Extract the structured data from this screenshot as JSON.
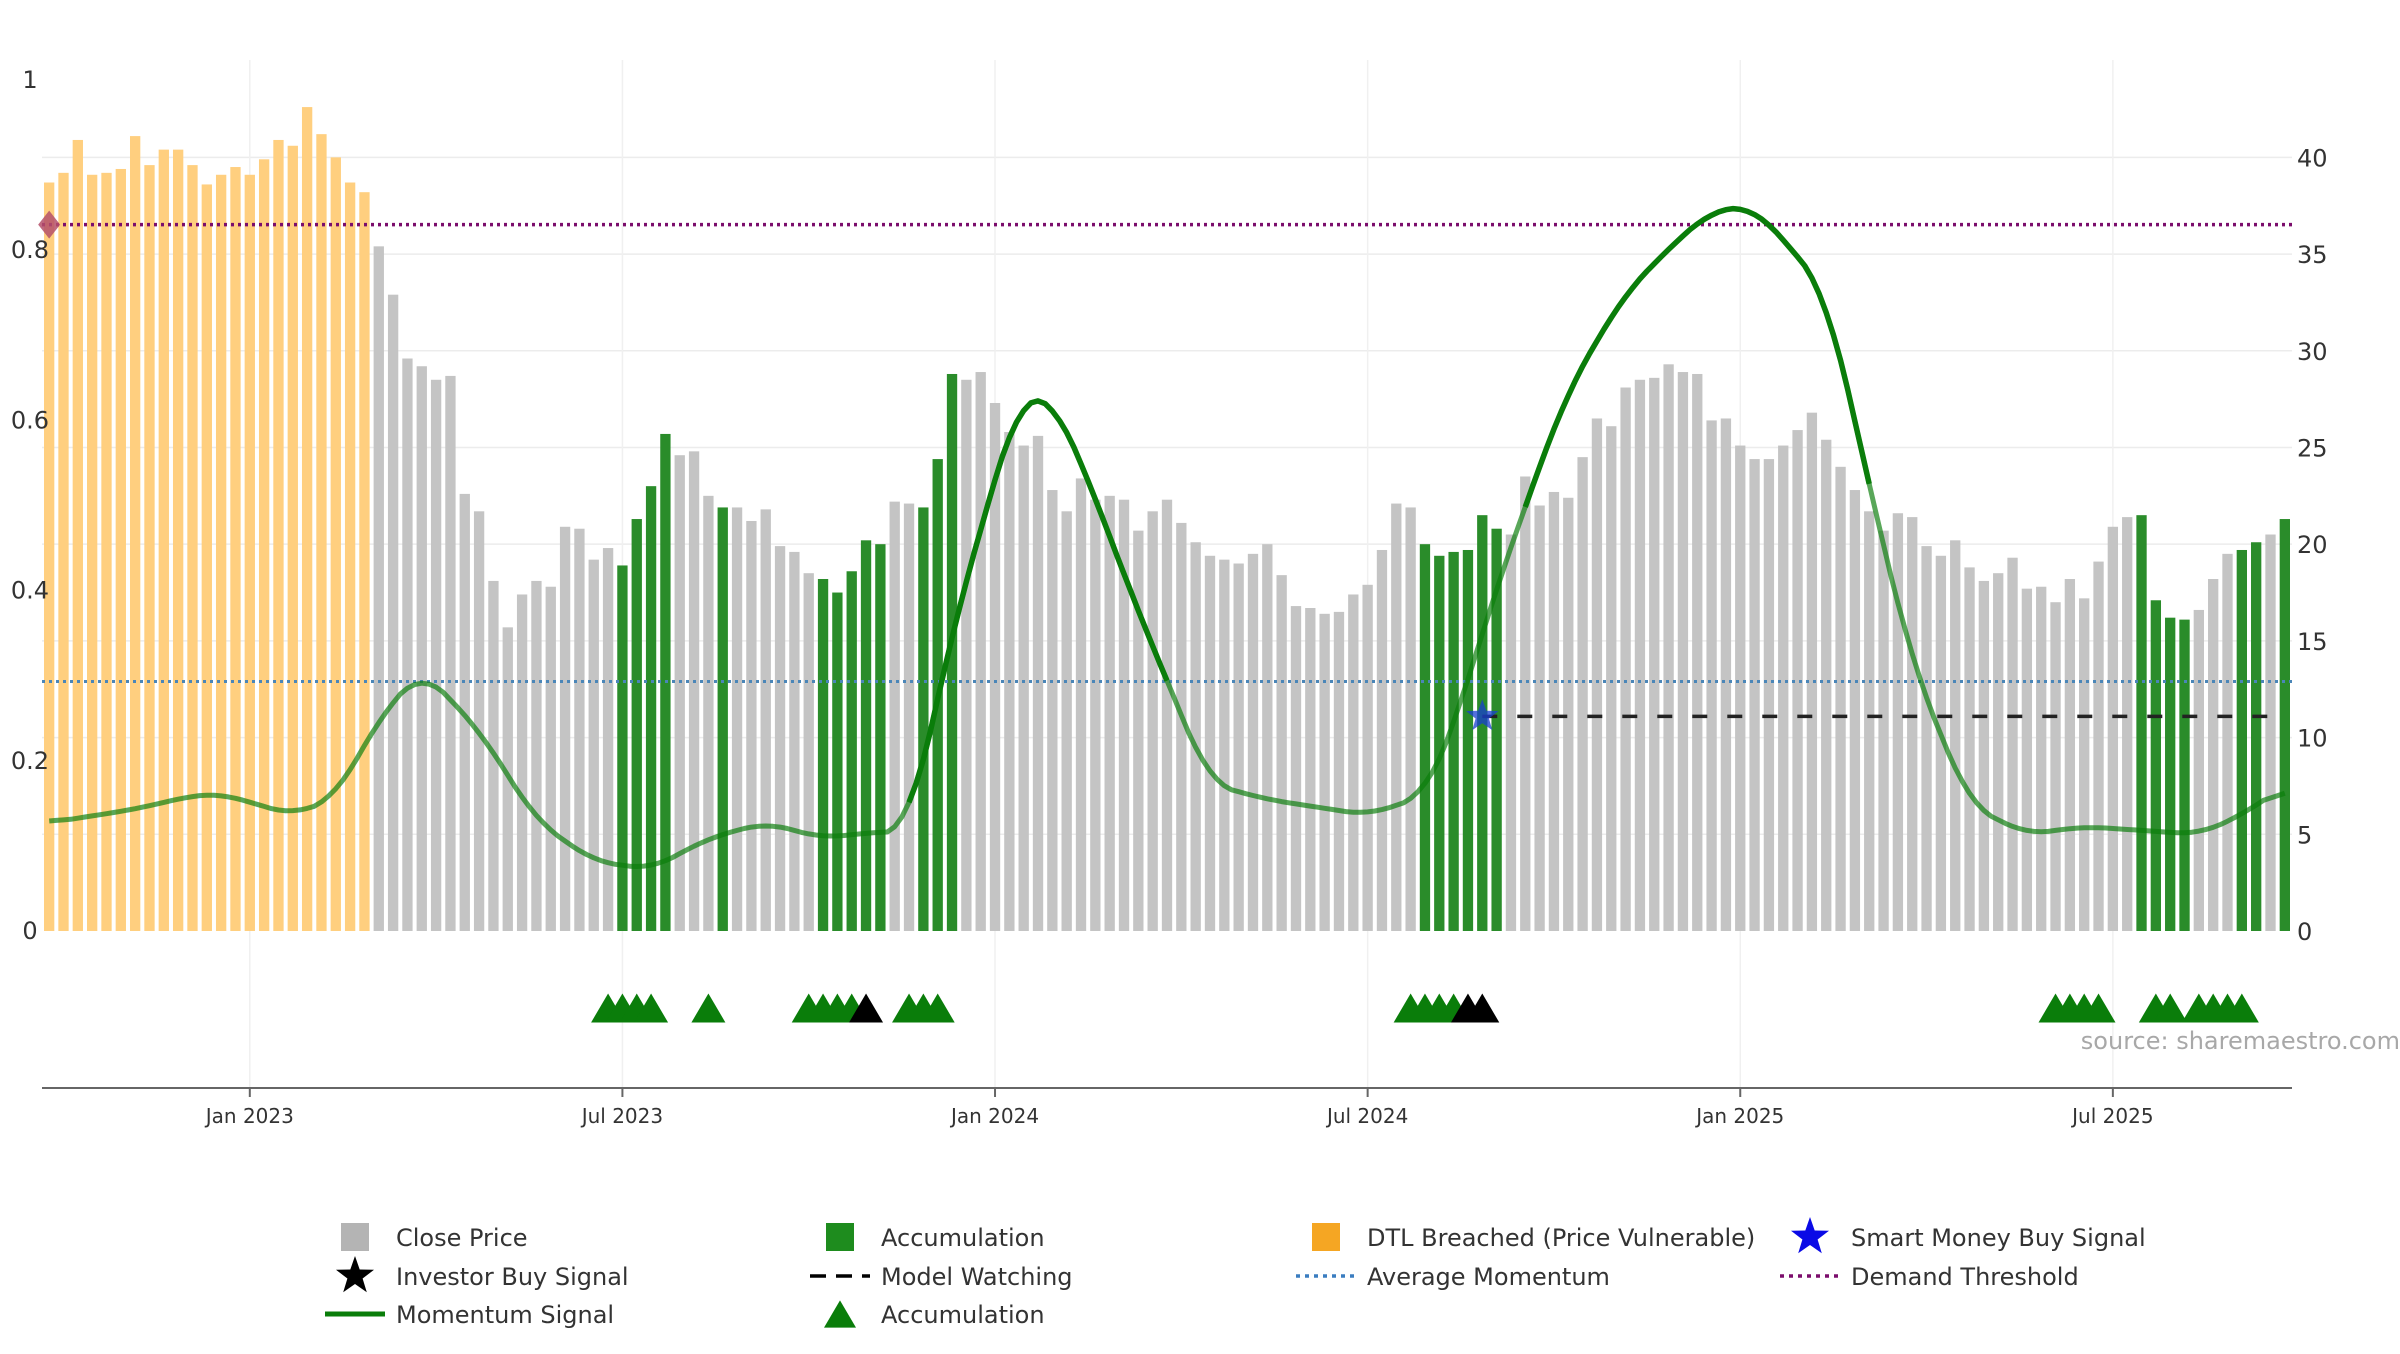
{
  "chart_data": {
    "type": "bar",
    "title": "",
    "xlabel": "",
    "ylabel": "",
    "source_note": "source: sharemaestro.com",
    "x_tick_labels": [
      "Jan 2023",
      "Jul 2023",
      "Jan 2024",
      "Jul 2024",
      "Jan 2025",
      "Jul 2025"
    ],
    "x_tick_weeks": [
      14,
      40,
      66,
      92,
      118,
      144
    ],
    "left_axis": {
      "range": [
        0,
        1
      ],
      "ticks": [
        0,
        0.2,
        0.4,
        0.6,
        0.8,
        1
      ],
      "tick_labels": [
        "0",
        "0.2",
        "0.4",
        "0.6",
        "0.8",
        "1"
      ]
    },
    "right_axis": {
      "range": [
        0,
        44
      ],
      "ticks": [
        0,
        5,
        10,
        15,
        20,
        25,
        30,
        35,
        40
      ],
      "tick_labels": [
        "0",
        "5",
        "10",
        "15",
        "20",
        "25",
        "30",
        "35",
        "40"
      ]
    },
    "grid": true,
    "legend_position": "bottom",
    "weeks_count": 157,
    "close_price": [
      38.7,
      39.2,
      40.9,
      39.1,
      39.2,
      39.4,
      41.1,
      39.6,
      40.4,
      40.4,
      39.6,
      38.6,
      39.1,
      39.5,
      39.1,
      39.9,
      40.9,
      40.6,
      42.6,
      41.2,
      40.0,
      38.7,
      38.2,
      35.4,
      32.9,
      29.6,
      29.2,
      28.5,
      28.7,
      22.6,
      21.7,
      18.1,
      15.7,
      17.4,
      18.1,
      17.8,
      20.9,
      20.8,
      19.2,
      19.8,
      18.9,
      21.3,
      23.0,
      25.7,
      24.6,
      24.8,
      22.5,
      21.9,
      21.9,
      21.2,
      21.8,
      19.9,
      19.6,
      18.5,
      18.2,
      17.5,
      18.6,
      20.2,
      20.0,
      22.2,
      22.1,
      21.9,
      24.4,
      28.8,
      28.5,
      28.9,
      27.3,
      25.8,
      25.1,
      25.6,
      22.8,
      21.7,
      23.4,
      22.3,
      22.5,
      22.3,
      20.7,
      21.7,
      22.3,
      21.1,
      20.1,
      19.4,
      19.2,
      19.0,
      19.5,
      20.0,
      18.4,
      16.8,
      16.7,
      16.4,
      16.5,
      17.4,
      17.9,
      19.7,
      22.1,
      21.9,
      20.0,
      19.4,
      19.6,
      19.7,
      21.5,
      20.8,
      20.5,
      23.5,
      22.0,
      22.7,
      22.4,
      24.5,
      26.5,
      26.1,
      28.1,
      28.5,
      28.6,
      29.3,
      28.9,
      28.8,
      26.4,
      26.5,
      25.1,
      24.4,
      24.4,
      25.1,
      25.9,
      26.8,
      25.4,
      24.0,
      22.8,
      21.7,
      20.7,
      21.6,
      21.4,
      19.9,
      19.4,
      20.2,
      18.8,
      18.1,
      18.5,
      19.3,
      17.7,
      17.8,
      17.0,
      18.2,
      17.2,
      19.1,
      20.9,
      21.4,
      21.5,
      17.1,
      16.2,
      16.1,
      16.6,
      18.2,
      19.5,
      19.7,
      20.1,
      20.5,
      21.3
    ],
    "bar_status": [
      "dtl",
      "dtl",
      "dtl",
      "dtl",
      "dtl",
      "dtl",
      "dtl",
      "dtl",
      "dtl",
      "dtl",
      "dtl",
      "dtl",
      "dtl",
      "dtl",
      "dtl",
      "dtl",
      "dtl",
      "dtl",
      "dtl",
      "dtl",
      "dtl",
      "dtl",
      "dtl",
      "close",
      "close",
      "close",
      "close",
      "close",
      "close",
      "close",
      "close",
      "close",
      "close",
      "close",
      "close",
      "close",
      "close",
      "close",
      "close",
      "close",
      "acc",
      "acc",
      "acc",
      "acc",
      "close",
      "close",
      "close",
      "acc",
      "close",
      "close",
      "close",
      "close",
      "close",
      "close",
      "acc",
      "acc",
      "acc",
      "acc",
      "acc",
      "close",
      "close",
      "acc",
      "acc",
      "acc",
      "close",
      "close",
      "close",
      "close",
      "close",
      "close",
      "close",
      "close",
      "close",
      "close",
      "close",
      "close",
      "close",
      "close",
      "close",
      "close",
      "close",
      "close",
      "close",
      "close",
      "close",
      "close",
      "close",
      "close",
      "close",
      "close",
      "close",
      "close",
      "close",
      "close",
      "close",
      "close",
      "acc",
      "acc",
      "acc",
      "acc",
      "acc",
      "acc",
      "close",
      "close",
      "close",
      "close",
      "close",
      "close",
      "close",
      "close",
      "close",
      "close",
      "close",
      "close",
      "close",
      "close",
      "close",
      "close",
      "close",
      "close",
      "close",
      "close",
      "close",
      "close",
      "close",
      "close",
      "close",
      "close",
      "close",
      "close",
      "close",
      "close",
      "close",
      "close",
      "close",
      "close",
      "close",
      "close",
      "close",
      "close",
      "close",
      "close",
      "close",
      "close",
      "close",
      "close",
      "acc",
      "acc",
      "acc",
      "acc",
      "close",
      "close",
      "close",
      "acc",
      "acc",
      "close",
      "acc",
      "acc",
      "acc",
      "acc",
      "acc",
      "acc"
    ],
    "momentum_signal_weeks": [
      0,
      6,
      10,
      12,
      17,
      20,
      23,
      26,
      30,
      34,
      38,
      42,
      46,
      50,
      54,
      56,
      60,
      63,
      67,
      68,
      70,
      72,
      76,
      81,
      85,
      92,
      96,
      98,
      100,
      103,
      106,
      110,
      114,
      116,
      118,
      119,
      121,
      124,
      127,
      130,
      134,
      138,
      142,
      146,
      150,
      153,
      156
    ],
    "momentum_signal_values": [
      5.6,
      6.3,
      7.0,
      7.1,
      6.0,
      6.9,
      11.0,
      13.5,
      10.4,
      5.7,
      3.6,
      3.2,
      4.8,
      5.6,
      4.8,
      5.0,
      5.2,
      15.5,
      26.0,
      27.8,
      27.5,
      24.3,
      16.5,
      7.6,
      6.8,
      6.0,
      7.0,
      10.5,
      15.5,
      22.0,
      28.0,
      33.0,
      36.0,
      37.2,
      37.5,
      37.3,
      35.8,
      33.0,
      23.0,
      13.8,
      6.5,
      5.0,
      5.4,
      5.2,
      5.0,
      6.0,
      7.5
    ],
    "momentum_emphasis_ranges": [
      [
        60,
        78
      ],
      [
        103,
        127
      ]
    ],
    "average_momentum": 12.9,
    "demand_threshold": 0.83,
    "model_watching": {
      "from_week": 100,
      "to_week": 155,
      "value": 11.1
    },
    "smart_money_buy_weeks": [
      100
    ],
    "demand_marker_weeks": [
      0
    ],
    "accumulation_triangle_weeks": [
      39,
      40,
      41,
      42,
      46,
      53,
      54,
      55,
      56,
      60,
      61,
      62,
      95,
      96,
      97,
      98,
      140,
      141,
      142,
      143,
      147,
      148,
      150,
      151,
      152,
      153
    ],
    "investor_buy_weeks": [
      57,
      99,
      100
    ],
    "legend": [
      {
        "label": "Close Price",
        "kind": "square",
        "color": "#b4b4b4"
      },
      {
        "label": "Accumulation",
        "kind": "square",
        "color": "#1e8c1e"
      },
      {
        "label": "DTL Breached (Price Vulnerable)",
        "kind": "square",
        "color": "#f5a623"
      },
      {
        "label": "Smart Money Buy Signal",
        "kind": "star",
        "color": "#0a0ae6"
      },
      {
        "label": "Investor Buy Signal",
        "kind": "star",
        "color": "#000000"
      },
      {
        "label": "Model Watching",
        "kind": "dash",
        "color": "#000000"
      },
      {
        "label": "Average Momentum",
        "kind": "dot-blue",
        "color": "#3a7dc0"
      },
      {
        "label": "Demand Threshold",
        "kind": "dot-purple",
        "color": "#7b0d6c"
      },
      {
        "label": "Momentum Signal",
        "kind": "line",
        "color": "#0a7d0a"
      },
      {
        "label": "Accumulation",
        "kind": "triangle",
        "color": "#0a7d0a"
      }
    ],
    "colors": {
      "close": "#c4c4c4",
      "acc": "#2a8c2a",
      "dtl": "#ffcf7f",
      "momentum": "#0a7d0a",
      "avg_momentum": "#4a86b8",
      "demand": "#7b0d6c",
      "triangle": "#0a7d0a",
      "investor": "#000000",
      "smart_money": "#1a3fd0"
    }
  }
}
